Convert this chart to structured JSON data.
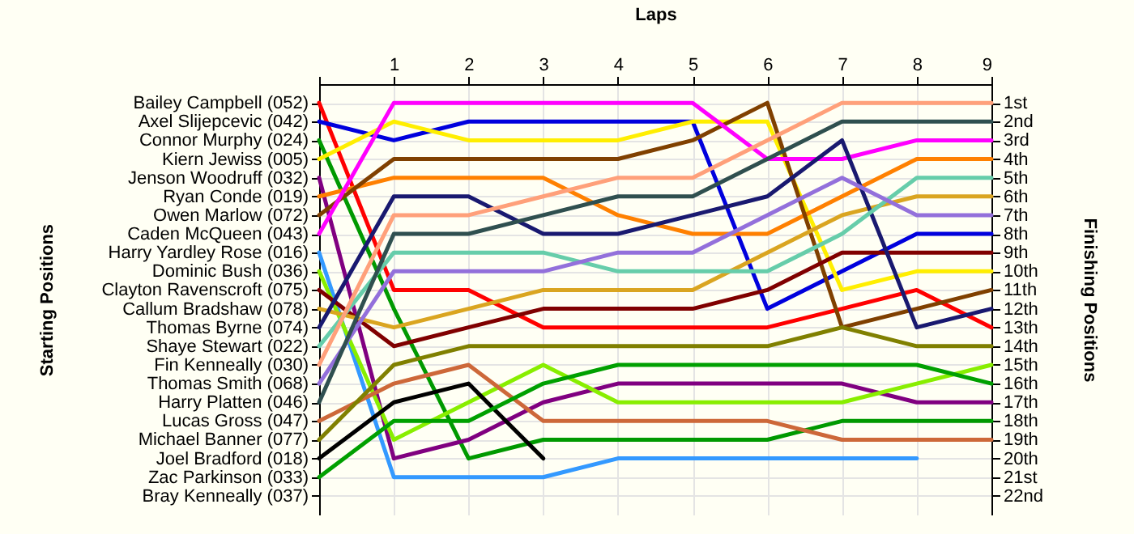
{
  "chart_data": {
    "type": "line",
    "xlabel": "Laps",
    "ylabel": "Finishing Positions",
    "grid": true,
    "x": [
      0,
      1,
      2,
      3,
      4,
      5,
      6,
      7,
      8,
      9
    ],
    "xlim": [
      0,
      9
    ],
    "xticks": [
      {
        "value": 0,
        "label": null
      },
      1,
      2,
      3,
      4,
      5,
      6,
      7,
      8,
      9
    ],
    "ylim": [
      23,
      0
    ],
    "yticks": [
      {
        "value": 1,
        "label": "1st"
      },
      {
        "value": 2,
        "label": "2nd"
      },
      {
        "value": 3,
        "label": "3rd"
      },
      {
        "value": 4,
        "label": "4th"
      },
      {
        "value": 5,
        "label": "5th"
      },
      {
        "value": 6,
        "label": "6th"
      },
      {
        "value": 7,
        "label": "7th"
      },
      {
        "value": 8,
        "label": "8th"
      },
      {
        "value": 9,
        "label": "9th"
      },
      {
        "value": 10,
        "label": "10th"
      },
      {
        "value": 11,
        "label": "11th"
      },
      {
        "value": 12,
        "label": "12th"
      },
      {
        "value": 13,
        "label": "13th"
      },
      {
        "value": 14,
        "label": "14th"
      },
      {
        "value": 15,
        "label": "15th"
      },
      {
        "value": 16,
        "label": "16th"
      },
      {
        "value": 17,
        "label": "17th"
      },
      {
        "value": 18,
        "label": "18th"
      },
      {
        "value": 19,
        "label": "19th"
      },
      {
        "value": 20,
        "label": "20th"
      },
      {
        "value": 21,
        "label": "21st"
      },
      {
        "value": 22,
        "label": "22nd"
      }
    ],
    "annotations": [
      "Starting Positions",
      "Bailey Campbell (052)",
      "Axel Slijepcevic (042)",
      "Connor Murphy (024)",
      "Kiern Jewiss (005)",
      "Jenson Woodruff (032)",
      "Ryan Conde (019)",
      "Owen Marlow (072)",
      "Caden McQueen (043)",
      "Harry Yardley Rose (016)",
      "Dominic Bush (036)",
      "Clayton Ravenscroft (075)",
      "Callum Bradshaw (078)",
      "Thomas Byrne (074)",
      "Shaye Stewart (022)",
      "Fin Kenneally (030)",
      "Thomas Smith (068)",
      "Harry Platten (046)",
      "Lucas Gross (047)",
      "Michael Banner (077)",
      "Joel Bradford (018)",
      "Zac Parkinson (033)",
      "Bray Kenneally (037)"
    ],
    "series": [
      {
        "color": "#ff0000",
        "values": [
          1,
          11,
          11,
          13,
          13,
          13,
          13,
          12,
          11,
          13
        ]
      },
      {
        "color": "#0000dd",
        "values": [
          2,
          3,
          2,
          2,
          2,
          2,
          12,
          10,
          8,
          8
        ]
      },
      {
        "color": "#009900",
        "values": [
          3,
          12,
          20,
          19,
          19,
          19,
          19,
          18,
          18,
          18
        ]
      },
      {
        "color": "#ffee00",
        "values": [
          4,
          2,
          3,
          3,
          3,
          2,
          2,
          11,
          10,
          10
        ]
      },
      {
        "color": "#800080",
        "values": [
          5,
          20,
          19,
          17,
          16,
          16,
          16,
          16,
          17,
          17
        ]
      },
      {
        "color": "#ff8000",
        "values": [
          6,
          5,
          5,
          5,
          7,
          8,
          8,
          6,
          4,
          4
        ]
      },
      {
        "color": "#804000",
        "values": [
          7,
          4,
          4,
          4,
          4,
          3,
          1,
          13,
          12,
          11
        ]
      },
      {
        "color": "#ff00ff",
        "values": [
          8,
          1,
          1,
          1,
          1,
          1,
          4,
          4,
          3,
          3
        ]
      },
      {
        "color": "#3399ff",
        "values": [
          9,
          21,
          21,
          21,
          20,
          20,
          20,
          20,
          20,
          null
        ]
      },
      {
        "color": "#88ee00",
        "values": [
          10,
          19,
          17,
          15,
          17,
          17,
          17,
          17,
          16,
          15
        ]
      },
      {
        "color": "#800000",
        "values": [
          11,
          14,
          13,
          12,
          12,
          12,
          11,
          9,
          9,
          9
        ]
      },
      {
        "color": "#daa520",
        "values": [
          12,
          13,
          12,
          11,
          11,
          11,
          9,
          7,
          6,
          6
        ]
      },
      {
        "color": "#191970",
        "values": [
          13,
          6,
          6,
          8,
          8,
          7,
          6,
          3,
          13,
          12
        ]
      },
      {
        "color": "#66cdaa",
        "values": [
          14,
          9,
          9,
          9,
          10,
          10,
          10,
          8,
          5,
          5
        ]
      },
      {
        "color": "#ffa07a",
        "values": [
          15,
          7,
          7,
          6,
          5,
          5,
          3,
          1,
          1,
          1
        ]
      },
      {
        "color": "#9370db",
        "values": [
          16,
          10,
          10,
          10,
          9,
          9,
          7,
          5,
          7,
          7
        ]
      },
      {
        "color": "#2f4f4f",
        "values": [
          17,
          8,
          8,
          7,
          6,
          6,
          4,
          2,
          2,
          2
        ]
      },
      {
        "color": "#cd6839",
        "values": [
          18,
          16,
          15,
          18,
          18,
          18,
          18,
          19,
          19,
          19
        ]
      },
      {
        "color": "#808000",
        "values": [
          19,
          15,
          14,
          14,
          14,
          14,
          14,
          13,
          14,
          14
        ]
      },
      {
        "color": "#000000",
        "values": [
          20,
          17,
          16,
          20,
          null,
          null,
          null,
          null,
          null,
          null
        ]
      },
      {
        "color": "#00a000",
        "values": [
          21,
          18,
          18,
          16,
          15,
          15,
          15,
          15,
          15,
          16
        ]
      }
    ]
  }
}
